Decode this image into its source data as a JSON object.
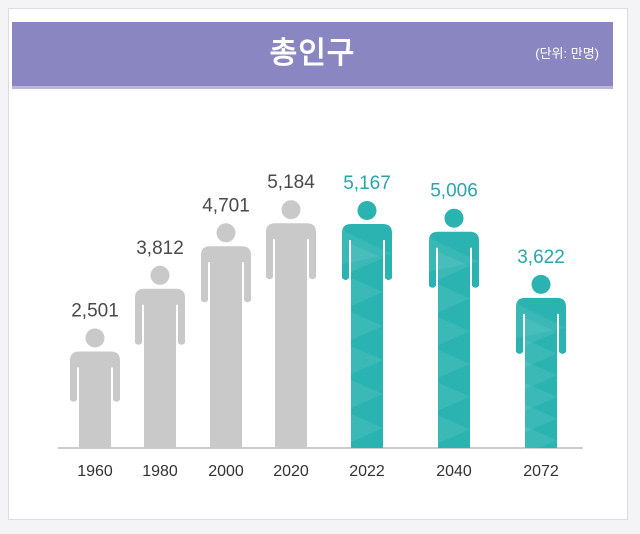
{
  "header": {
    "title": "총인구",
    "unit": "(단위: 만명)"
  },
  "colors": {
    "header_bg": "#8a86c2",
    "past": "#c9c9c9",
    "projection": "#2bb3b1",
    "past_label": "#4a4a4a",
    "projection_label": "#2aa5ad"
  },
  "chart_data": {
    "type": "bar",
    "title": "총인구",
    "unit": "(단위: 만명)",
    "categories": [
      "1960",
      "1980",
      "2000",
      "2020",
      "2022",
      "2040",
      "2072"
    ],
    "values": [
      2501,
      3812,
      4701,
      5184,
      5167,
      5006,
      3622
    ],
    "value_labels": [
      "2,501",
      "3,812",
      "4,701",
      "5,184",
      "5,167",
      "5,006",
      "3,622"
    ],
    "kinds": [
      "past",
      "past",
      "past",
      "past",
      "projection",
      "projection",
      "projection"
    ],
    "ylim": [
      0,
      5500
    ],
    "grid": false,
    "mark": "person-icon"
  }
}
